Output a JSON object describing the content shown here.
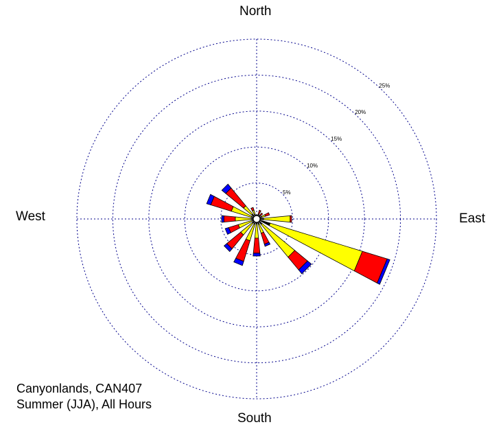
{
  "chart_data": {
    "type": "wind-rose",
    "directions": [
      "North",
      "East",
      "South",
      "West"
    ],
    "caption": [
      "Canyonlands, CAN407",
      "Summer (JJA), All Hours"
    ],
    "rings": [
      {
        "value": 5,
        "label": "5%"
      },
      {
        "value": 10,
        "label": "10%"
      },
      {
        "value": 15,
        "label": "15%"
      },
      {
        "value": 20,
        "label": "20%"
      },
      {
        "value": 25,
        "label": "25%"
      }
    ],
    "rmax": 25,
    "speed_class_colors": [
      "#000000",
      "#ffff00",
      "#ff0000",
      "#0000ff"
    ],
    "ring_color": "#00008b",
    "sectors": [
      {
        "direction_deg": 0,
        "segments": [
          0.1,
          0.0,
          0.0,
          0.0
        ]
      },
      {
        "direction_deg": 22.5,
        "segments": [
          0.2,
          0.0,
          0.6,
          0.0
        ]
      },
      {
        "direction_deg": 45,
        "segments": [
          0.2,
          0.0,
          0.4,
          0.0
        ]
      },
      {
        "direction_deg": 67.5,
        "segments": [
          0.3,
          0.5,
          0.6,
          0.0
        ]
      },
      {
        "direction_deg": 90,
        "segments": [
          0.5,
          3.7,
          0.2,
          0.0
        ]
      },
      {
        "direction_deg": 112.5,
        "segments": [
          1.5,
          13.4,
          3.6,
          0.4
        ]
      },
      {
        "direction_deg": 135,
        "segments": [
          0.5,
          5.9,
          2.3,
          0.7
        ]
      },
      {
        "direction_deg": 157.5,
        "segments": [
          0.3,
          1.3,
          1.6,
          0.3
        ]
      },
      {
        "direction_deg": 180,
        "segments": [
          0.2,
          2.0,
          2.1,
          0.4
        ]
      },
      {
        "direction_deg": 202.5,
        "segments": [
          0.3,
          2.4,
          3.0,
          0.6
        ]
      },
      {
        "direction_deg": 225,
        "segments": [
          0.3,
          2.1,
          2.5,
          0.5
        ]
      },
      {
        "direction_deg": 247.5,
        "segments": [
          0.2,
          2.0,
          1.4,
          0.5
        ]
      },
      {
        "direction_deg": 270,
        "segments": [
          0.3,
          2.2,
          1.6,
          0.3
        ]
      },
      {
        "direction_deg": 292.5,
        "segments": [
          0.3,
          2.9,
          3.0,
          0.6
        ]
      },
      {
        "direction_deg": 315,
        "segments": [
          0.4,
          1.5,
          3.2,
          0.7
        ]
      },
      {
        "direction_deg": 337.5,
        "segments": [
          0.2,
          0.6,
          0.4,
          0.0
        ]
      }
    ]
  }
}
